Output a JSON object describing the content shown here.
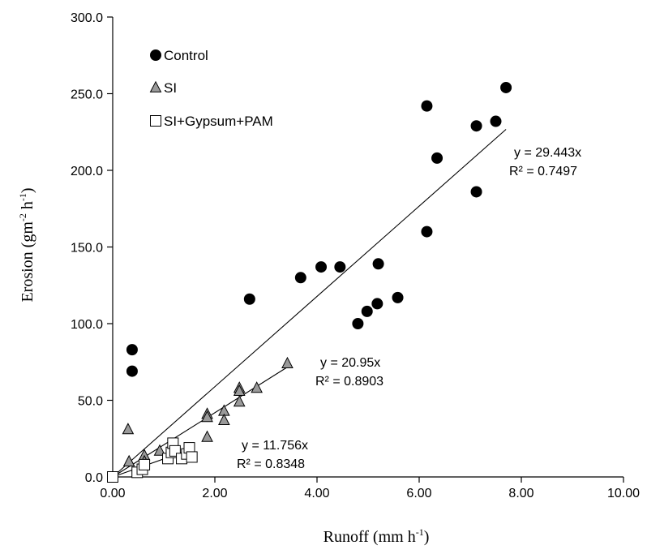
{
  "chart_data": {
    "type": "scatter",
    "xlabel": "Runoff (mm h",
    "xlabel_sup": "-1",
    "xlabel_end": ")",
    "ylabel": "Erosion (gm",
    "ylabel_sup1": "-2",
    "ylabel_mid": " h",
    "ylabel_sup2": "-1",
    "ylabel_end": ")",
    "xlim": [
      0,
      10
    ],
    "ylim": [
      0,
      300
    ],
    "x_ticks": [
      0,
      2,
      4,
      6,
      8,
      10
    ],
    "x_tick_labels": [
      "0.00",
      "2.00",
      "4.00",
      "6.00",
      "8.00",
      "10.00"
    ],
    "y_ticks": [
      0,
      50,
      100,
      150,
      200,
      250,
      300
    ],
    "y_tick_labels": [
      "0.0",
      "50.0",
      "100.0",
      "150.0",
      "200.0",
      "250.0",
      "300.0"
    ],
    "grid": false,
    "legend_position": "top-left",
    "series": [
      {
        "name": "Control",
        "marker": "circle",
        "color": "#000000",
        "trend": {
          "slope": 29.443,
          "x_end": 7.7,
          "equation": "y = 29.443x",
          "r2": "R² = 0.7497"
        },
        "points": [
          [
            0.38,
            83
          ],
          [
            0.38,
            69
          ],
          [
            2.68,
            116
          ],
          [
            3.68,
            130
          ],
          [
            4.08,
            137
          ],
          [
            4.45,
            137
          ],
          [
            4.8,
            100
          ],
          [
            4.98,
            108
          ],
          [
            5.18,
            113
          ],
          [
            5.2,
            139
          ],
          [
            5.58,
            117
          ],
          [
            6.15,
            242
          ],
          [
            6.15,
            160
          ],
          [
            6.35,
            208
          ],
          [
            7.12,
            229
          ],
          [
            7.12,
            186
          ],
          [
            7.5,
            232
          ],
          [
            7.7,
            254
          ]
        ]
      },
      {
        "name": "SI",
        "marker": "triangle",
        "color": "#9a9a9a",
        "trend": {
          "slope": 20.95,
          "x_end": 3.45,
          "equation": "y = 20.95x",
          "r2": "R² = 0.8903"
        },
        "points": [
          [
            0.3,
            31
          ],
          [
            0.32,
            10
          ],
          [
            0.62,
            14
          ],
          [
            0.62,
            10
          ],
          [
            0.92,
            17
          ],
          [
            1.85,
            41
          ],
          [
            1.85,
            39
          ],
          [
            1.85,
            26
          ],
          [
            2.18,
            43
          ],
          [
            2.18,
            37
          ],
          [
            2.48,
            58
          ],
          [
            2.48,
            56
          ],
          [
            2.48,
            49
          ],
          [
            2.82,
            58
          ],
          [
            3.42,
            74
          ]
        ]
      },
      {
        "name": "SI+Gypsum+PAM",
        "marker": "square",
        "color": "#ffffff",
        "trend": {
          "slope": 11.756,
          "x_end": 1.6,
          "equation": "y = 11.756x",
          "r2": "R² = 0.8348"
        },
        "points": [
          [
            0.0,
            0
          ],
          [
            0.48,
            3
          ],
          [
            0.58,
            5
          ],
          [
            0.62,
            8
          ],
          [
            1.08,
            12
          ],
          [
            1.15,
            16
          ],
          [
            1.18,
            22
          ],
          [
            1.22,
            17
          ],
          [
            1.35,
            12
          ],
          [
            1.45,
            15
          ],
          [
            1.5,
            19
          ],
          [
            1.55,
            13
          ]
        ]
      }
    ]
  }
}
